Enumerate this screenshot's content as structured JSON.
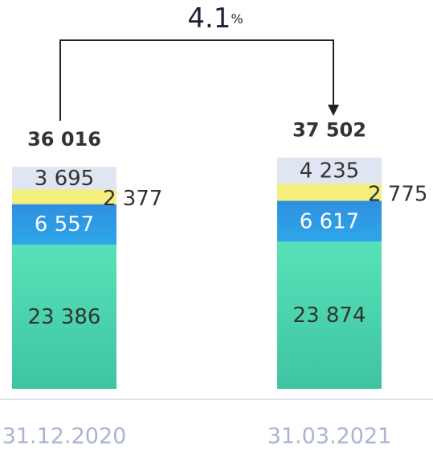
{
  "chart_data": {
    "type": "stacked_bar",
    "categories": [
      "31.12.2020",
      "31.03.2021"
    ],
    "series": [
      {
        "color": "#48d2ab",
        "values": [
          23386,
          23874
        ],
        "value_labels": [
          "23 386",
          "23 874"
        ]
      },
      {
        "color": "#2e92e2",
        "values": [
          6557,
          6617
        ],
        "value_labels": [
          "6 557",
          "6 617"
        ]
      },
      {
        "color": "#f4ee7c",
        "values": [
          2377,
          2775
        ],
        "value_labels": [
          "2 377",
          "2 775"
        ]
      },
      {
        "color": "#dfe5f1",
        "values": [
          3695,
          4235
        ],
        "value_labels": [
          "3 695",
          "4 235"
        ]
      }
    ],
    "total_labels": [
      "36 016",
      "37 502"
    ],
    "growth_label": "4.1",
    "growth_unit": "%"
  }
}
